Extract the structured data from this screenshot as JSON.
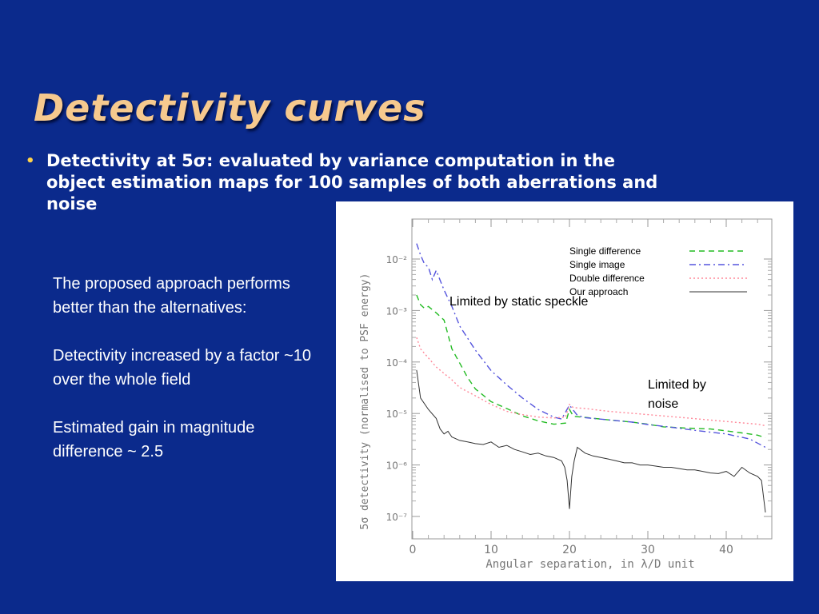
{
  "slide": {
    "title": "Detectivity curves",
    "bullet_marker": "•",
    "bullet_line_1": "Detectivity at 5σ: evaluated by variance computation in the",
    "bullet_line_2": "object estimation maps for 100 samples of both aberrations and",
    "bullet_line_3": "noise",
    "notes": [
      "The proposed approach performs better than the alternatives:",
      "Detectivity increased by a factor ~10 over the whole field",
      "Estimated gain in magnitude difference ~ 2.5"
    ],
    "title_color": "#f6c98e",
    "background_color": "#0b2a8c"
  },
  "chart_data": {
    "type": "line",
    "xlabel": "Angular separation, in λ/D unit",
    "ylabel": "5σ detectivity (normalised to PSF energy)",
    "xlim": [
      0,
      45
    ],
    "ylim": [
      1e-07,
      0.01
    ],
    "y_scale": "log",
    "x_ticks": [
      0,
      10,
      20,
      30,
      40
    ],
    "x_tick_labels": [
      "0",
      "10",
      "20",
      "30",
      "40"
    ],
    "y_ticks": [
      1e-07,
      1e-06,
      1e-05,
      0.0001,
      0.001,
      0.01
    ],
    "y_tick_labels": [
      "10⁻⁷",
      "10⁻⁶",
      "10⁻⁵",
      "10⁻⁴",
      "10⁻³",
      "10⁻²"
    ],
    "legend_position": "top-right",
    "annotations": [
      "Limited by static speckle",
      "Limited by noise"
    ],
    "series": [
      {
        "name": "Single difference",
        "style": "dashed",
        "color": "#22bb22",
        "x": [
          0.5,
          1,
          1.5,
          2,
          3,
          4,
          5,
          6,
          7,
          8,
          10,
          12,
          14,
          16,
          18,
          19.5,
          20,
          20.5,
          22,
          25,
          28,
          30,
          32,
          35,
          38,
          40,
          42,
          44,
          45
        ],
        "y": [
          0.002,
          0.0013,
          0.0011,
          0.0012,
          0.0009,
          0.00065,
          0.00018,
          9.5e-05,
          5e-05,
          3e-05,
          1.7e-05,
          1.25e-05,
          9e-06,
          7.2e-06,
          6.2e-06,
          6.5e-06,
          1.2e-05,
          8.8e-06,
          8.4e-06,
          7.5e-06,
          6.8e-06,
          6.2e-06,
          5.5e-06,
          5.2e-06,
          5e-06,
          4.6e-06,
          4.2e-06,
          3.8e-06,
          3.4e-06
        ]
      },
      {
        "name": "Single image",
        "style": "dashdot",
        "color": "#5555dd",
        "x": [
          0.5,
          1,
          1.5,
          2,
          2.5,
          3,
          4,
          5,
          6,
          8,
          10,
          12,
          14,
          16,
          18,
          19,
          20,
          21,
          22,
          25,
          28,
          30,
          33,
          36,
          40,
          43,
          45
        ],
        "y": [
          0.02,
          0.012,
          0.008,
          0.007,
          0.004,
          0.006,
          0.0025,
          0.0012,
          0.0005,
          0.00017,
          6.8e-05,
          3.6e-05,
          2e-05,
          1.2e-05,
          8.5e-06,
          7.8e-06,
          1.45e-05,
          9.2e-06,
          8.3e-06,
          7.5e-06,
          6.8e-06,
          6.1e-06,
          5.4e-06,
          4.7e-06,
          4e-06,
          3.2e-06,
          2.2e-06
        ]
      },
      {
        "name": "Double difference",
        "style": "dotted",
        "color": "#ff8899",
        "x": [
          0.5,
          1,
          2,
          3,
          4,
          5,
          6,
          8,
          10,
          12,
          14,
          16,
          18,
          19.5,
          20,
          20.5,
          22,
          25,
          30,
          35,
          40,
          44,
          45
        ],
        "y": [
          0.0003,
          0.00018,
          0.00012,
          8e-05,
          6e-05,
          4.5e-05,
          3.2e-05,
          2.2e-05,
          1.5e-05,
          1.1e-05,
          9.5e-06,
          8.5e-06,
          8.2e-06,
          8.5e-06,
          1.5e-05,
          1.3e-05,
          1.25e-05,
          1.1e-05,
          9.5e-06,
          8.2e-06,
          7e-06,
          6.2e-06,
          5.8e-06
        ]
      },
      {
        "name": "Our approach",
        "style": "solid",
        "color": "#333333",
        "x": [
          0.5,
          1,
          2,
          3,
          3.5,
          4,
          4.5,
          5,
          6,
          7,
          8,
          9,
          10,
          11,
          12,
          13,
          14,
          15,
          16,
          17,
          18,
          19,
          19.4,
          19.7,
          20,
          20.3,
          20.6,
          21,
          22,
          23,
          24,
          25,
          26,
          27,
          28,
          29,
          30,
          31,
          32,
          33,
          34,
          35,
          36,
          37,
          38,
          39,
          40,
          41,
          42,
          43,
          44,
          44.5,
          45
        ],
        "y": [
          7e-05,
          2e-05,
          1.2e-05,
          8e-06,
          5e-06,
          4e-06,
          4.5e-06,
          3.5e-06,
          3e-06,
          2.8e-06,
          2.6e-06,
          2.5e-06,
          2.8e-06,
          2.2e-06,
          2.4e-06,
          2e-06,
          1.8e-06,
          1.6e-06,
          1.7e-06,
          1.5e-06,
          1.4e-06,
          1.2e-06,
          9e-07,
          5e-07,
          1.4e-07,
          6e-07,
          1.2e-06,
          2.2e-06,
          1.7e-06,
          1.5e-06,
          1.4e-06,
          1.3e-06,
          1.2e-06,
          1.1e-06,
          1.1e-06,
          1e-06,
          1e-06,
          9.5e-07,
          9e-07,
          9e-07,
          8.5e-07,
          8e-07,
          8e-07,
          7.5e-07,
          7e-07,
          6.8e-07,
          7.5e-07,
          6e-07,
          9e-07,
          7e-07,
          6e-07,
          5e-07,
          1.2e-07
        ]
      }
    ]
  }
}
